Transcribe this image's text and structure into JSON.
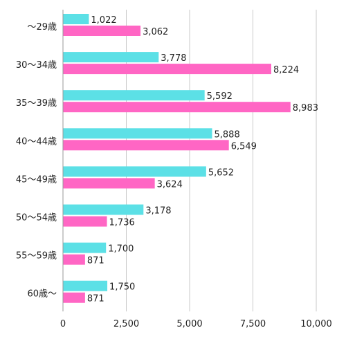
{
  "chart_data": {
    "type": "bar",
    "orientation": "horizontal",
    "categories": [
      "〜29歳",
      "30〜34歳",
      "35〜39歳",
      "40〜44歳",
      "45〜49歳",
      "50〜54歳",
      "55〜59歳",
      "60歳〜"
    ],
    "series": [
      {
        "color": "#5ce0e6",
        "values": [
          1022,
          3778,
          5592,
          5888,
          5652,
          3178,
          1700,
          1750
        ]
      },
      {
        "color": "#ff66c4",
        "values": [
          3062,
          8224,
          8983,
          6549,
          3624,
          1736,
          871,
          871
        ]
      }
    ],
    "value_labels": [
      [
        "1,022",
        "3,778",
        "5,592",
        "5,888",
        "5,652",
        "3,178",
        "1,700",
        "1,750"
      ],
      [
        "3,062",
        "8,224",
        "8,983",
        "6,549",
        "3,624",
        "1,736",
        "871",
        "871"
      ]
    ],
    "xlim": [
      0,
      10000
    ],
    "xticks": [
      0,
      2500,
      5000,
      7500,
      10000
    ],
    "xtick_labels": [
      "0",
      "2,500",
      "5,000",
      "7,500",
      "10,000"
    ],
    "grid": true,
    "title": "",
    "xlabel": "",
    "ylabel": ""
  }
}
